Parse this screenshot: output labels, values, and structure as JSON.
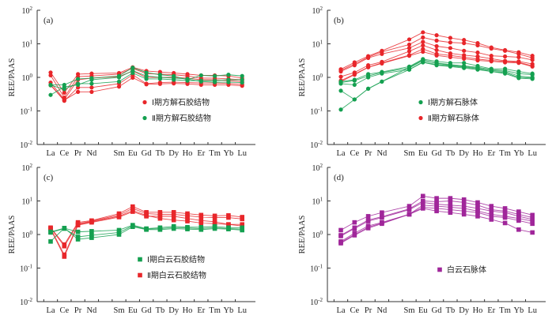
{
  "chart_data": [
    {
      "type": "line",
      "panel_label": "(a)",
      "ylabel": "REE/PAAS",
      "yscale": "log",
      "ylim": [
        0.01,
        100
      ],
      "ytick_labels": [
        {
          "base": "10",
          "exp": "-2"
        },
        {
          "base": "10",
          "exp": "-1"
        },
        {
          "base": "10",
          "exp": "0"
        },
        {
          "base": "10",
          "exp": "1"
        },
        {
          "base": "10",
          "exp": "2"
        }
      ],
      "categories": [
        "La",
        "Ce",
        "Pr",
        "Nd",
        "",
        "Sm",
        "Eu",
        "Gd",
        "Tb",
        "Dy",
        "Ho",
        "Er",
        "Tm",
        "Yb",
        "Lu"
      ],
      "marker": "circle",
      "legend": [
        {
          "label": "Ⅰ期方解石胶结物",
          "color": "#e8262a"
        },
        {
          "label": "Ⅱ期方解石胶结物",
          "color": "#14a050"
        }
      ],
      "legend_position": "center-right",
      "series": [
        {
          "group": 0,
          "values": [
            1.4,
            0.35,
            1.25,
            1.3,
            null,
            1.35,
            2.0,
            1.55,
            1.45,
            1.35,
            1.25,
            1.15,
            1.15,
            1.1,
            0.95
          ]
        },
        {
          "group": 0,
          "values": [
            1.15,
            0.25,
            1.05,
            1.1,
            null,
            1.25,
            1.85,
            1.3,
            1.25,
            1.2,
            1.1,
            0.95,
            0.95,
            0.9,
            0.85
          ]
        },
        {
          "group": 0,
          "values": [
            0.7,
            0.22,
            0.85,
            0.95,
            null,
            1.05,
            1.55,
            1.0,
            1.0,
            1.0,
            0.95,
            0.85,
            0.85,
            0.8,
            0.75
          ]
        },
        {
          "group": 0,
          "values": [
            0.6,
            0.2,
            0.5,
            0.5,
            null,
            0.65,
            1.2,
            0.65,
            0.7,
            0.72,
            0.7,
            0.68,
            0.68,
            0.66,
            0.62
          ]
        },
        {
          "group": 0,
          "values": [
            0.58,
            0.21,
            0.37,
            0.37,
            null,
            0.53,
            0.98,
            0.62,
            0.64,
            0.66,
            0.64,
            0.6,
            0.6,
            0.6,
            0.56
          ]
        },
        {
          "group": 1,
          "values": [
            0.6,
            0.6,
            0.9,
            0.95,
            null,
            1.1,
            1.95,
            1.4,
            1.2,
            1.1,
            0.85,
            1.15,
            1.1,
            1.2,
            1.1
          ]
        },
        {
          "group": 1,
          "values": [
            0.58,
            0.45,
            0.65,
            0.65,
            null,
            0.75,
            1.35,
            0.9,
            0.9,
            0.85,
            0.8,
            0.8,
            0.8,
            0.85,
            0.85
          ]
        },
        {
          "group": 1,
          "values": [
            0.3,
            0.52,
            0.6,
            0.85,
            null,
            1.0,
            1.6,
            1.1,
            1.0,
            0.95,
            0.9,
            0.75,
            0.72,
            0.72,
            0.7
          ]
        }
      ]
    },
    {
      "type": "line",
      "panel_label": "(b)",
      "ylabel": "REE/PAAS",
      "yscale": "log",
      "ylim": [
        0.01,
        100
      ],
      "ytick_labels": [
        {
          "base": "10",
          "exp": "-2"
        },
        {
          "base": "10",
          "exp": "-1"
        },
        {
          "base": "10",
          "exp": "0"
        },
        {
          "base": "10",
          "exp": "1"
        },
        {
          "base": "10",
          "exp": "2"
        }
      ],
      "categories": [
        "La",
        "Ce",
        "Pr",
        "Nd",
        "",
        "Sm",
        "Eu",
        "Gd",
        "Tb",
        "Dy",
        "Ho",
        "Er",
        "Tm",
        "Yb",
        "Lu"
      ],
      "marker": "circle",
      "legend": [
        {
          "label": "Ⅰ期方解石脉体",
          "color": "#14a050"
        },
        {
          "label": "Ⅱ期方解石脉体",
          "color": "#e8262a"
        }
      ],
      "legend_position": "center-right",
      "series": [
        {
          "group": 1,
          "values": [
            1.75,
            2.8,
            4.3,
            6.2,
            null,
            13.5,
            22.0,
            18.0,
            15.0,
            13.0,
            10.5,
            7.8,
            6.5,
            5.6,
            4.4
          ]
        },
        {
          "group": 1,
          "values": [
            1.6,
            2.5,
            4.0,
            5.8,
            null,
            9.5,
            15.5,
            12.5,
            11.0,
            10.5,
            9.0,
            7.2,
            6.2,
            5.0,
            3.8
          ]
        },
        {
          "group": 1,
          "values": [
            1.5,
            2.3,
            3.8,
            5.0,
            null,
            7.5,
            11.5,
            8.5,
            7.5,
            6.2,
            5.5,
            4.4,
            4.2,
            4.0,
            3.3
          ]
        },
        {
          "group": 1,
          "values": [
            1.05,
            1.4,
            2.3,
            2.9,
            null,
            6.0,
            9.0,
            6.5,
            5.2,
            4.6,
            4.2,
            3.6,
            3.1,
            3.0,
            2.5
          ]
        },
        {
          "group": 1,
          "values": [
            0.8,
            1.25,
            2.0,
            2.7,
            null,
            4.6,
            7.0,
            5.0,
            4.5,
            4.0,
            3.5,
            3.2,
            3.0,
            2.8,
            2.2
          ]
        },
        {
          "group": 1,
          "values": [
            0.75,
            1.2,
            2.0,
            2.6,
            null,
            4.4,
            5.8,
            4.5,
            4.0,
            3.6,
            3.2,
            3.0,
            2.8,
            2.7,
            2.1
          ]
        },
        {
          "group": 0,
          "values": [
            0.75,
            0.85,
            1.25,
            1.45,
            null,
            2.1,
            3.5,
            3.0,
            2.7,
            2.7,
            2.2,
            1.8,
            1.8,
            1.5,
            1.3
          ]
        },
        {
          "group": 0,
          "values": [
            0.7,
            0.8,
            1.1,
            1.4,
            null,
            1.9,
            3.2,
            2.7,
            2.4,
            2.2,
            2.0,
            1.7,
            1.6,
            1.3,
            1.2
          ]
        },
        {
          "group": 0,
          "values": [
            0.65,
            0.6,
            1.0,
            1.3,
            null,
            1.7,
            2.9,
            2.4,
            2.2,
            2.0,
            1.8,
            1.5,
            1.4,
            1.0,
            0.95
          ]
        },
        {
          "group": 0,
          "values": [
            0.4,
            0.22,
            0.46,
            0.75,
            null,
            1.7,
            2.8,
            2.3,
            2.1,
            1.9,
            1.7,
            1.5,
            1.3,
            0.95,
            0.9
          ]
        },
        {
          "group": 0,
          "values": [
            0.11,
            0.22,
            0.46,
            0.75,
            null,
            2.0,
            3.3,
            2.6,
            2.3,
            2.1,
            1.9,
            1.6,
            1.5,
            1.1,
            1.0
          ]
        }
      ]
    },
    {
      "type": "line",
      "panel_label": "(c)",
      "ylabel": "REE/PAAS",
      "yscale": "log",
      "ylim": [
        0.01,
        100
      ],
      "ytick_labels": [
        {
          "base": "10",
          "exp": "-2"
        },
        {
          "base": "10",
          "exp": "-1"
        },
        {
          "base": "10",
          "exp": "0"
        },
        {
          "base": "10",
          "exp": "1"
        },
        {
          "base": "10",
          "exp": "2"
        }
      ],
      "categories": [
        "La",
        "Ce",
        "Pr",
        "Nd",
        "",
        "Sm",
        "Eu",
        "Gd",
        "Tb",
        "Dy",
        "Ho",
        "Er",
        "Tm",
        "Yb",
        "Lu"
      ],
      "marker": "square",
      "legend": [
        {
          "label": "Ⅰ期白云石胶结物",
          "color": "#14a050"
        },
        {
          "label": "Ⅱ期白云石胶结物",
          "color": "#e8262a"
        }
      ],
      "legend_position": "center-right",
      "series": [
        {
          "group": 1,
          "values": [
            1.6,
            0.5,
            2.3,
            2.6,
            null,
            4.2,
            6.8,
            4.6,
            4.6,
            4.6,
            4.2,
            3.8,
            3.6,
            3.7,
            3.3
          ]
        },
        {
          "group": 1,
          "values": [
            1.55,
            0.45,
            2.1,
            2.5,
            null,
            3.8,
            6.0,
            4.2,
            4.0,
            4.0,
            3.6,
            3.3,
            3.2,
            3.2,
            2.9
          ]
        },
        {
          "group": 1,
          "values": [
            1.5,
            0.25,
            2.0,
            2.4,
            null,
            3.5,
            5.2,
            3.7,
            3.0,
            2.7,
            2.5,
            2.2,
            2.1,
            2.0,
            1.8
          ]
        },
        {
          "group": 1,
          "values": [
            1.45,
            0.22,
            1.9,
            2.3,
            null,
            3.3,
            4.8,
            3.5,
            3.5,
            3.5,
            3.0,
            2.6,
            2.4,
            2.0,
            2.0
          ]
        },
        {
          "group": 0,
          "values": [
            1.2,
            1.55,
            1.2,
            1.25,
            null,
            1.35,
            1.9,
            1.5,
            1.6,
            1.75,
            1.65,
            1.65,
            1.75,
            1.6,
            1.6
          ]
        },
        {
          "group": 0,
          "values": [
            1.15,
            1.5,
            0.85,
            0.95,
            null,
            1.15,
            1.8,
            1.45,
            1.5,
            1.6,
            1.55,
            1.5,
            1.6,
            1.5,
            1.45
          ]
        },
        {
          "group": 0,
          "values": [
            0.62,
            1.55,
            0.72,
            0.8,
            null,
            1.0,
            1.7,
            1.4,
            1.4,
            1.5,
            1.45,
            1.4,
            1.5,
            1.45,
            1.35
          ]
        }
      ]
    },
    {
      "type": "line",
      "panel_label": "(d)",
      "ylabel": "REE/PAAS",
      "yscale": "log",
      "ylim": [
        0.01,
        100
      ],
      "ytick_labels": [
        {
          "base": "10",
          "exp": "-2"
        },
        {
          "base": "10",
          "exp": "-1"
        },
        {
          "base": "10",
          "exp": "0"
        },
        {
          "base": "10",
          "exp": "1"
        },
        {
          "base": "10",
          "exp": "2"
        }
      ],
      "categories": [
        "La",
        "Ce",
        "Pr",
        "Nd",
        "",
        "Sm",
        "Eu",
        "Gd",
        "Tb",
        "Dy",
        "Ho",
        "Er",
        "Tm",
        "Yb",
        "Lu"
      ],
      "marker": "square",
      "legend": [
        {
          "label": "白云石脉体",
          "color": "#a0269a"
        }
      ],
      "legend_position": "center-right",
      "series": [
        {
          "group": 0,
          "values": [
            1.35,
            2.3,
            3.5,
            4.5,
            null,
            7.0,
            14.0,
            12.0,
            12.0,
            11.0,
            9.0,
            7.0,
            6.0,
            4.8,
            3.8
          ]
        },
        {
          "group": 0,
          "values": [
            0.95,
            1.6,
            2.7,
            3.4,
            null,
            5.8,
            10.0,
            9.5,
            10.0,
            9.0,
            7.5,
            5.5,
            5.0,
            4.0,
            3.2
          ]
        },
        {
          "group": 0,
          "values": [
            0.9,
            1.5,
            2.5,
            3.2,
            null,
            5.5,
            9.0,
            8.0,
            7.5,
            7.0,
            6.0,
            5.0,
            4.5,
            3.5,
            2.8
          ]
        },
        {
          "group": 0,
          "values": [
            0.62,
            1.1,
            1.8,
            2.3,
            null,
            4.0,
            7.5,
            7.0,
            6.5,
            6.0,
            5.0,
            4.0,
            3.5,
            3.0,
            2.5
          ]
        },
        {
          "group": 0,
          "values": [
            0.58,
            1.0,
            1.65,
            2.2,
            null,
            4.0,
            6.5,
            6.0,
            5.5,
            5.0,
            4.5,
            3.5,
            3.2,
            2.6,
            2.1
          ]
        },
        {
          "group": 0,
          "values": [
            0.55,
            0.95,
            1.55,
            2.1,
            null,
            4.0,
            6.0,
            5.0,
            4.5,
            4.0,
            3.5,
            2.8,
            2.2,
            1.4,
            1.15
          ]
        }
      ]
    }
  ]
}
